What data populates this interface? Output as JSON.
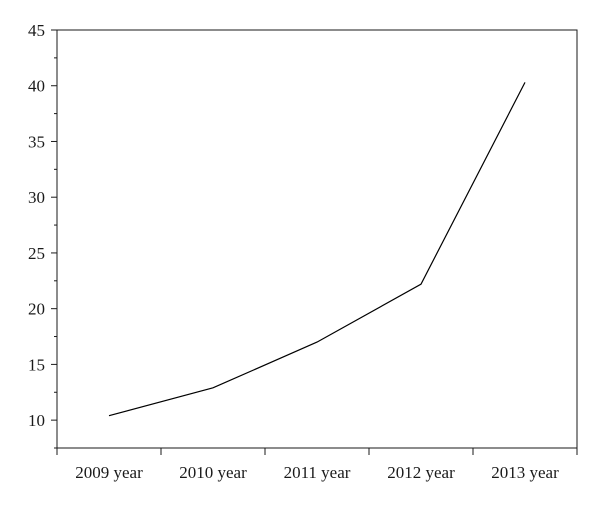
{
  "chart_data": {
    "type": "line",
    "title": "",
    "xlabel": "",
    "ylabel": "",
    "categories": [
      "2009 year",
      "2010 year",
      "2011 year",
      "2012 year",
      "2013 year"
    ],
    "series": [
      {
        "values": [
          10.4,
          12.9,
          17.0,
          22.2,
          40.3
        ]
      }
    ],
    "ylim": [
      7.5,
      45
    ],
    "yticks": [
      10,
      15,
      20,
      25,
      30,
      35,
      40,
      45
    ],
    "grid": false,
    "legend": "none",
    "line_color": "#000000",
    "axis_color": "#1a1a1a"
  }
}
